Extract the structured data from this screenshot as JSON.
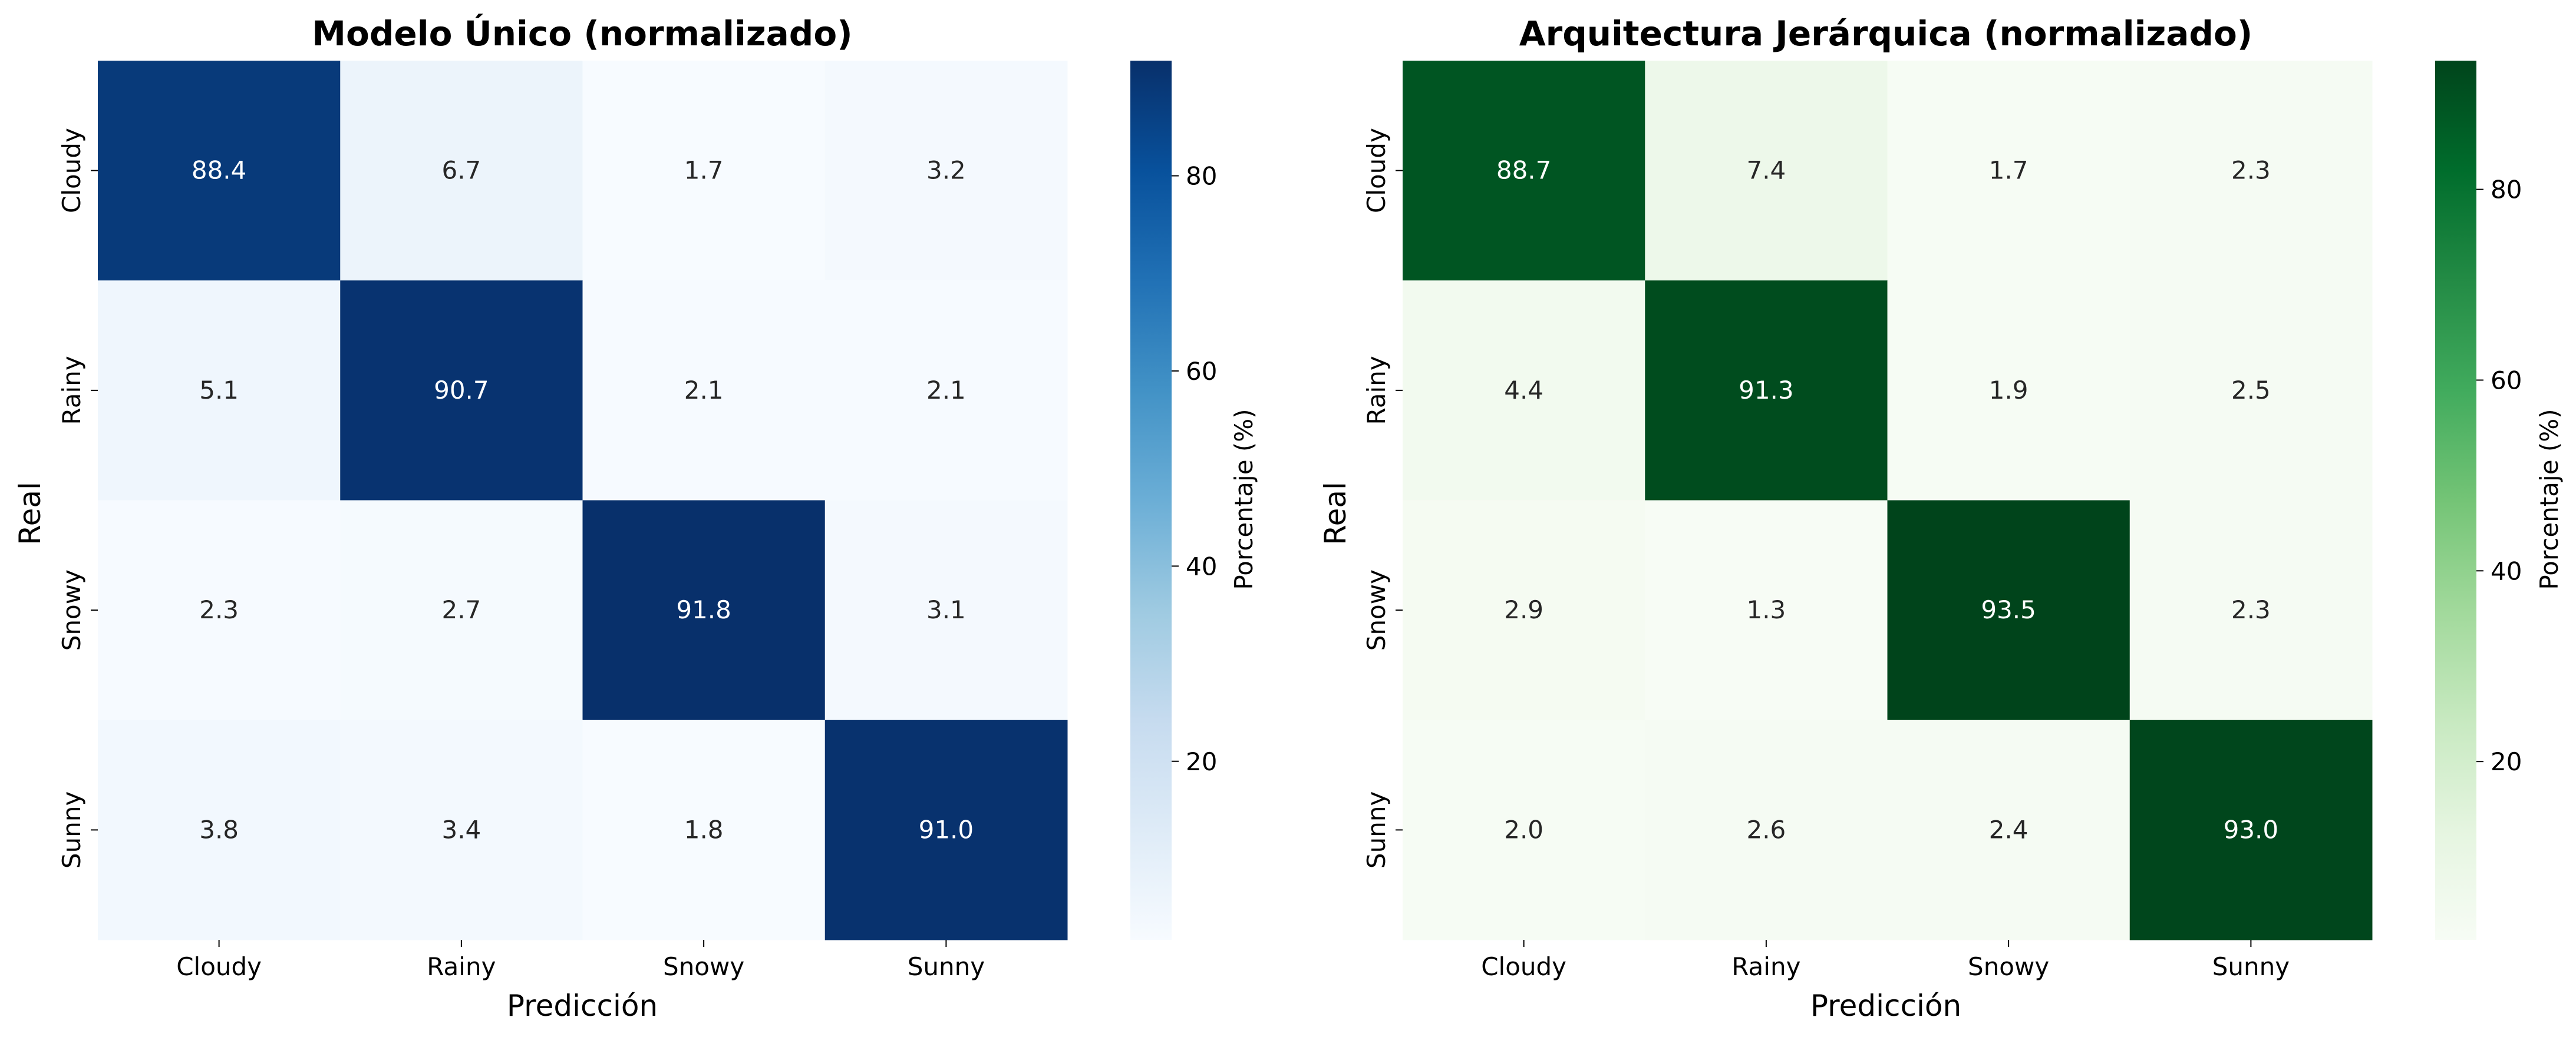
{
  "chart_data": [
    {
      "type": "heatmap",
      "title": "Modelo Único (normalizado)",
      "xlabel": "Predicción",
      "ylabel": "Real",
      "x_categories": [
        "Cloudy",
        "Rainy",
        "Snowy",
        "Sunny"
      ],
      "y_categories": [
        "Cloudy",
        "Rainy",
        "Snowy",
        "Sunny"
      ],
      "values": [
        [
          88.4,
          6.7,
          1.7,
          3.2
        ],
        [
          5.1,
          90.7,
          2.1,
          2.1
        ],
        [
          2.3,
          2.7,
          91.8,
          3.1
        ],
        [
          3.8,
          3.4,
          1.8,
          91.0
        ]
      ],
      "colormap": "Blues",
      "colors": [
        "#f7fbff",
        "#deebf7",
        "#c6dbef",
        "#9ecae1",
        "#6baed6",
        "#4292c6",
        "#2171b5",
        "#08519c",
        "#08306b"
      ],
      "colorbar": {
        "label": "Porcentaje (%)",
        "ticks": [
          20,
          40,
          60,
          80
        ],
        "range": [
          1.7,
          91.8
        ]
      }
    },
    {
      "type": "heatmap",
      "title": "Arquitectura Jerárquica (normalizado)",
      "xlabel": "Predicción",
      "ylabel": "Real",
      "x_categories": [
        "Cloudy",
        "Rainy",
        "Snowy",
        "Sunny"
      ],
      "y_categories": [
        "Cloudy",
        "Rainy",
        "Snowy",
        "Sunny"
      ],
      "values": [
        [
          88.7,
          7.4,
          1.7,
          2.3
        ],
        [
          4.4,
          91.3,
          1.9,
          2.5
        ],
        [
          2.9,
          1.3,
          93.5,
          2.3
        ],
        [
          2.0,
          2.6,
          2.4,
          93.0
        ]
      ],
      "colormap": "Greens",
      "colors": [
        "#f7fcf5",
        "#e5f5e0",
        "#c7e9c0",
        "#a1d99b",
        "#74c476",
        "#41ab5d",
        "#238b45",
        "#006d2c",
        "#00441b"
      ],
      "colorbar": {
        "label": "Porcentaje (%)",
        "ticks": [
          20,
          40,
          60,
          80
        ],
        "range": [
          1.3,
          93.5
        ]
      }
    }
  ]
}
